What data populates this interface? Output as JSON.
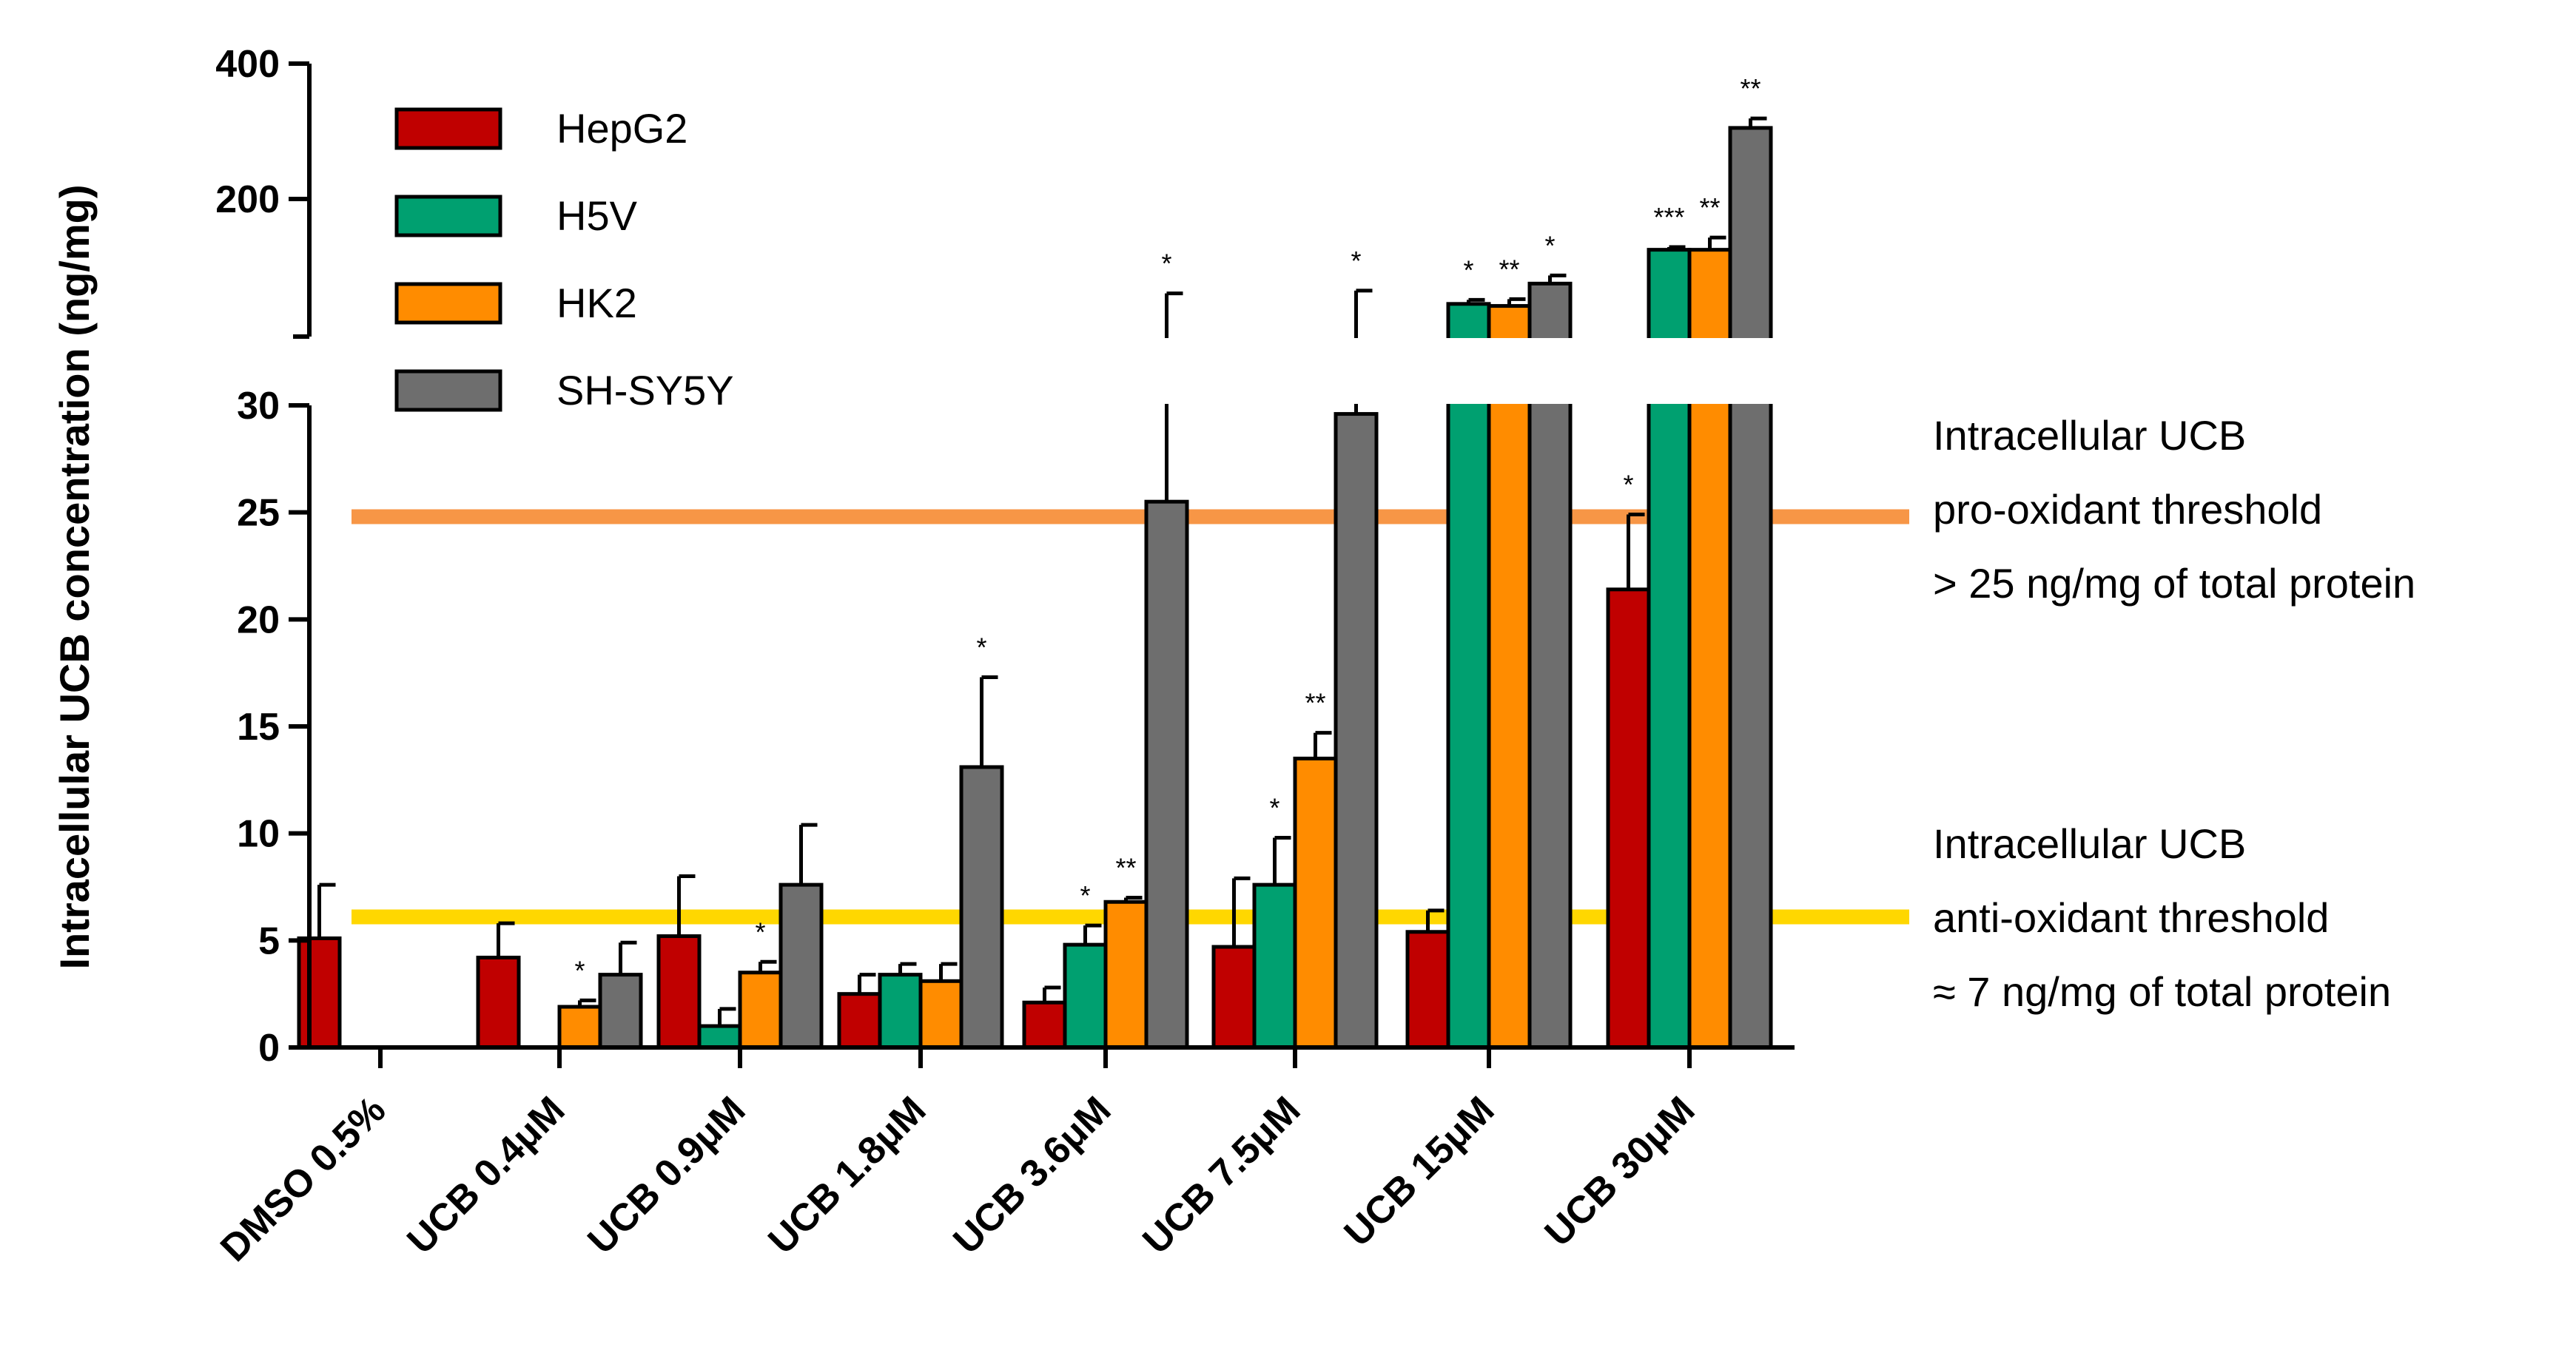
{
  "chart_data": {
    "type": "bar",
    "title": "",
    "xlabel": "",
    "ylabel": "Intracellular UCB concentration (ng/mg)",
    "axis_break": {
      "lower_range": [
        0,
        30
      ],
      "upper_range": [
        0,
        400
      ]
    },
    "y_ticks_lower": [
      "0",
      "5",
      "10",
      "15",
      "20",
      "25",
      "30"
    ],
    "y_ticks_upper": [
      "200",
      "400"
    ],
    "legend_position": "top-left",
    "categories": [
      "DMSO 0.5%",
      "UCB 0.4μM",
      "UCB 0.9μM",
      "UCB 1.8μM",
      "UCB 3.6μM",
      "UCB 7.5μM",
      "UCB 15μM",
      "UCB 30μM"
    ],
    "series": [
      {
        "name": "HepG2",
        "color": "#c00000",
        "values": [
          5.1,
          4.2,
          5.2,
          2.5,
          2.1,
          4.7,
          5.4,
          21.4
        ],
        "errors": [
          2.5,
          1.6,
          2.8,
          0.9,
          0.7,
          3.2,
          1.0,
          3.5
        ],
        "significance": [
          "",
          "",
          "",
          "",
          "",
          "",
          "",
          "*"
        ]
      },
      {
        "name": "H5V",
        "color": "#00a070",
        "values": [
          0,
          0,
          1.0,
          3.4,
          4.8,
          7.6,
          45,
          125
        ],
        "errors": [
          0,
          0,
          0.8,
          0.5,
          0.9,
          2.2,
          6,
          4
        ],
        "significance": [
          "",
          "",
          "",
          "",
          "*",
          "*",
          "*",
          "***"
        ]
      },
      {
        "name": "HK2",
        "color": "#ff8c00",
        "values": [
          0,
          1.9,
          3.5,
          3.1,
          6.8,
          13.5,
          42,
          125
        ],
        "errors": [
          0,
          0.3,
          0.5,
          0.8,
          0.2,
          1.2,
          10,
          18
        ],
        "significance": [
          "",
          "*",
          "*",
          "",
          "**",
          "**",
          "**",
          "**"
        ]
      },
      {
        "name": "SH-SY5Y",
        "color": "#6e6e6e",
        "values": [
          0,
          3.4,
          7.6,
          13.1,
          25.5,
          29.6,
          75,
          305
        ],
        "errors": [
          0,
          1.5,
          2.8,
          4.2,
          35,
          35,
          12,
          14
        ],
        "significance": [
          "",
          "",
          "",
          "*",
          "*",
          "*",
          "*",
          "**"
        ]
      }
    ],
    "thresholds": [
      {
        "value": 24.8,
        "color": "#f79646",
        "lines": [
          "Intracellular     UCB",
          "pro-oxidant threshold",
          "> 25 ng/mg of  total protein"
        ]
      },
      {
        "value": 6.1,
        "color": "#ffd700",
        "lines": [
          "Intracellular UCB",
          "anti-oxidant threshold",
          "≈ 7 ng/mg of  total protein"
        ]
      }
    ]
  }
}
